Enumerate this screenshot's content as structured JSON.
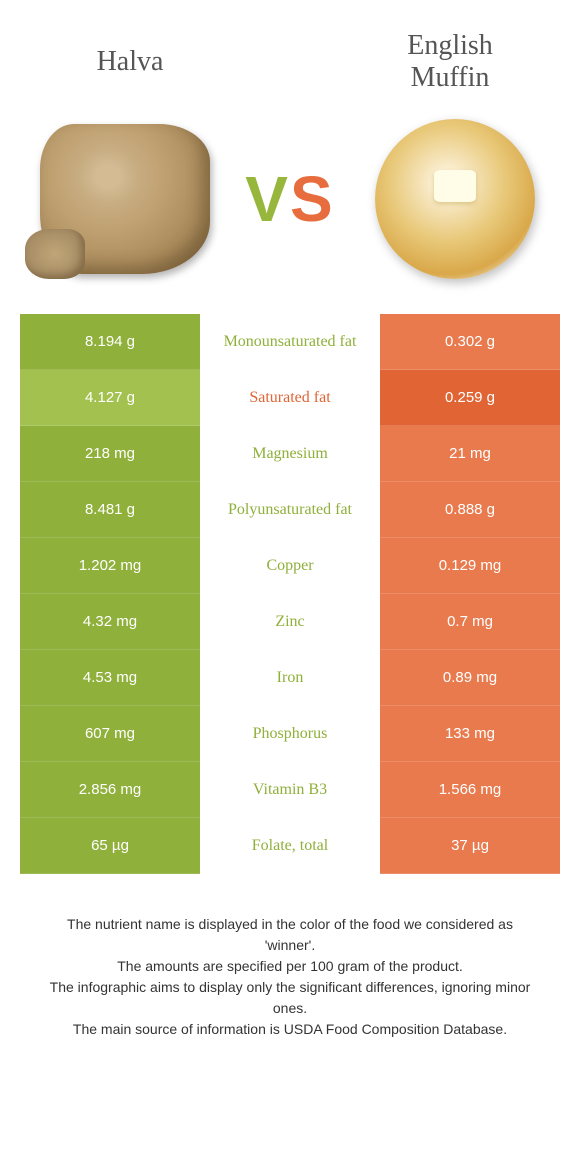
{
  "colors": {
    "left": "#8fb03a",
    "left_light": "#a2c14e",
    "right": "#e06434",
    "right_light": "#e87a4e",
    "text_left": "#8fb03a",
    "text_right": "#e06434"
  },
  "foods": {
    "left": "Halva",
    "right": "English\nMuffin"
  },
  "rows": [
    {
      "name": "Monounsaturated fat",
      "left": "8.194 g",
      "right": "0.302 g",
      "winner": "left"
    },
    {
      "name": "Saturated fat",
      "left": "4.127 g",
      "right": "0.259 g",
      "winner": "right"
    },
    {
      "name": "Magnesium",
      "left": "218 mg",
      "right": "21 mg",
      "winner": "left"
    },
    {
      "name": "Polyunsaturated fat",
      "left": "8.481 g",
      "right": "0.888 g",
      "winner": "left"
    },
    {
      "name": "Copper",
      "left": "1.202 mg",
      "right": "0.129 mg",
      "winner": "left"
    },
    {
      "name": "Zinc",
      "left": "4.32 mg",
      "right": "0.7 mg",
      "winner": "left"
    },
    {
      "name": "Iron",
      "left": "4.53 mg",
      "right": "0.89 mg",
      "winner": "left"
    },
    {
      "name": "Phosphorus",
      "left": "607 mg",
      "right": "133 mg",
      "winner": "left"
    },
    {
      "name": "Vitamin B3",
      "left": "2.856 mg",
      "right": "1.566 mg",
      "winner": "left"
    },
    {
      "name": "Folate, total",
      "left": "65 µg",
      "right": "37 µg",
      "winner": "left"
    }
  ],
  "footer": {
    "line1": "The nutrient name is displayed in the color of the food we considered as 'winner'.",
    "line2": "The amounts are specified per 100 gram of the product.",
    "line3": "The infographic aims to display only the significant differences, ignoring minor ones.",
    "line4": "The main source of information is USDA Food Composition Database."
  }
}
